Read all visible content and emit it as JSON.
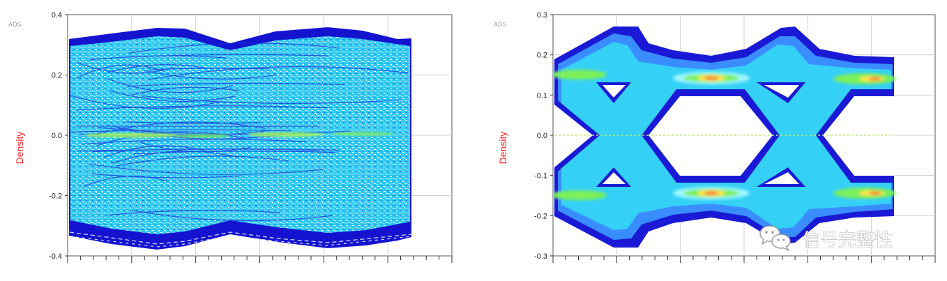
{
  "chart_data": [
    {
      "type": "heatmap",
      "subtype": "eye-diagram-density",
      "badge": "ADS",
      "ylabel": "Density",
      "ylim": [
        -0.4,
        0.4
      ],
      "yticks": [
        0.4,
        0.2,
        0.0,
        -0.2,
        -0.4
      ],
      "ytick_labels": [
        "0.4",
        "0.2",
        "0.0",
        "-0.2",
        "-0.4"
      ],
      "grid": true,
      "eye_levels": [
        0.32,
        -0.32
      ],
      "eye_crossings_ui": [
        0.5,
        1.5
      ],
      "eye_state": "closed",
      "colormap": [
        "#1a1ad6",
        "#3a8dff",
        "#35d0f5",
        "#9ff7ff",
        "#7cf05a",
        "#ffe14d",
        "#f08a3c"
      ]
    },
    {
      "type": "heatmap",
      "subtype": "eye-diagram-density",
      "badge": "ADS",
      "ylabel": "Density",
      "ylim": [
        -0.3,
        0.3
      ],
      "yticks": [
        0.3,
        0.2,
        0.1,
        0.0,
        -0.1,
        -0.2,
        -0.3
      ],
      "ytick_labels": [
        "0.3",
        "0.2",
        "0.1",
        "0.0",
        "-0.1",
        "-0.2",
        "-0.3"
      ],
      "grid": true,
      "eye_levels": [
        0.14,
        -0.14
      ],
      "eye_crossings_ui": [
        0.5,
        1.5
      ],
      "eye_state": "open",
      "colormap": [
        "#1a1ad6",
        "#3a8dff",
        "#35d0f5",
        "#9ff7ff",
        "#7cf05a",
        "#ffe14d",
        "#f08a3c"
      ]
    }
  ],
  "watermark": {
    "text": "信号完整性",
    "icon": "wechat-icon"
  }
}
